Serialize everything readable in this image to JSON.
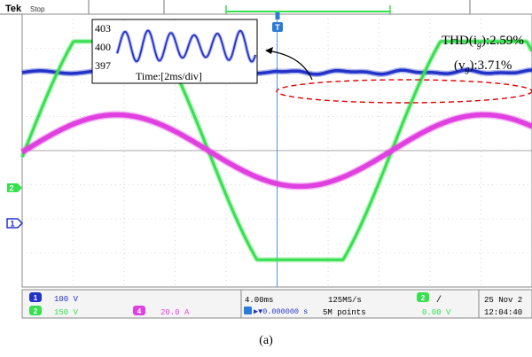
{
  "chart_data": {
    "type": "line",
    "title": "",
    "xlabel": "",
    "ylabel": "",
    "status": {
      "brand": "Tek",
      "state": "Stop"
    },
    "annotation": {
      "thd_ig_label": "THD(i",
      "thd_ig_sub": "g",
      "thd_ig_value": "):2.59%",
      "thd_vg_label": "(v",
      "thd_vg_sub": "g",
      "thd_vg_value": "):3.71%"
    },
    "inset": {
      "yticks": [
        "403",
        "400",
        "397"
      ],
      "label": "Time:[2ms/div]",
      "ylim": [
        397,
        403
      ],
      "cycles": 6,
      "center": 400,
      "amplitude": 2.2
    },
    "series": [
      {
        "name": "1",
        "color": "#2333c8",
        "kind": "dc_ripple",
        "offset_div": 2.3,
        "ripple_div": 0.04
      },
      {
        "name": "2",
        "color": "#36e04e",
        "kind": "trapezoid",
        "offset_div": 0,
        "amplitude_div": 3.2
      },
      {
        "name": "4",
        "color": "#e040e0",
        "kind": "sine",
        "offset_div": 0,
        "amplitude_div": 1.05
      }
    ],
    "x_range_div": [
      0,
      10
    ],
    "y_range_div": [
      -4,
      4
    ],
    "period_div": 7.2,
    "phase_div": 0.05,
    "markers": {
      "ch2": "2",
      "ch1": "1",
      "trigger": "T"
    },
    "readout": {
      "ch1_num": "1",
      "ch1_scale": "100 V",
      "ch2_num": "2",
      "ch2_scale": "150 V",
      "ch4_num": "4",
      "ch4_scale": "20.0 A",
      "timebase": "4.00ms",
      "trigger_pos": "▶▼0.000000 s",
      "sample_rate": "125MS/s",
      "record_len": "5M points",
      "trig_ch_num": "2",
      "trig_slope": "/",
      "trig_level": "0.00 V",
      "date": "25 Nov 2",
      "time": "12:04:40"
    },
    "caption": "(a)",
    "colors": {
      "ch1": "#2333c8",
      "ch2": "#36e04e",
      "ch4": "#e040e0",
      "grid": "#b8b8b8",
      "highlight": "#e00000"
    }
  }
}
